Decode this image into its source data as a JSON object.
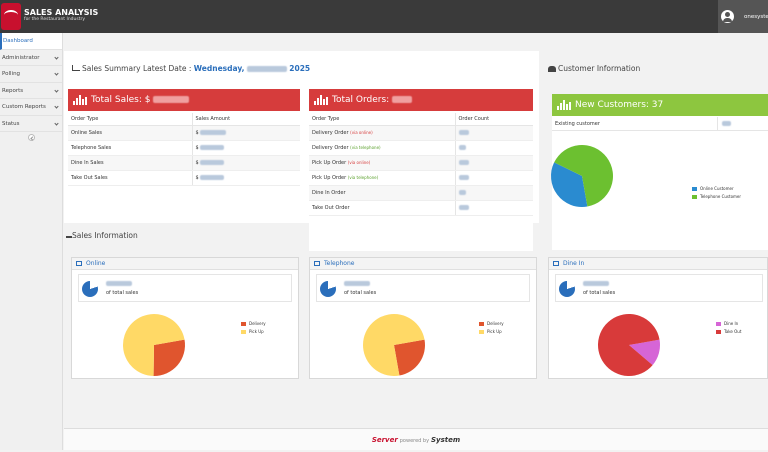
{
  "header": {
    "title": "SALES ANALYSIS",
    "subtitle": "for the Restaurant Industry",
    "username": "onesystem"
  },
  "sidebar": {
    "items": [
      {
        "label": "Dashboard",
        "active": true
      },
      {
        "label": "Administrator"
      },
      {
        "label": "Polling"
      },
      {
        "label": "Reports"
      },
      {
        "label": "Custom Reports"
      },
      {
        "label": "Status"
      }
    ]
  },
  "summary": {
    "heading": "Sales Summary Latest Date : ",
    "date_prefix": "Wednesday,",
    "year": "2025"
  },
  "total_sales": {
    "label": "Total Sales: $",
    "col1": "Order Type",
    "col2": "Sales Amount",
    "rows": [
      "Online Sales",
      "Telephone Sales",
      "Dine In Sales",
      "Take Out Sales"
    ],
    "currency": "$"
  },
  "total_orders": {
    "label": "Total Orders:",
    "col1": "Order Type",
    "col2": "Order Count",
    "rows": [
      {
        "label": "Delivery Order",
        "tag": "(via online)",
        "tag_color": "red"
      },
      {
        "label": "Delivery Order",
        "tag": "(via telephone)",
        "tag_color": "green"
      },
      {
        "label": "Pick Up Order",
        "tag": "(via online)",
        "tag_color": "red"
      },
      {
        "label": "Pick Up Order",
        "tag": "(via telephone)",
        "tag_color": "green"
      },
      {
        "label": "Dine In Order",
        "tag": "",
        "tag_color": ""
      },
      {
        "label": "Take Out Order",
        "tag": "",
        "tag_color": ""
      }
    ]
  },
  "customer_info": {
    "heading": "Customer Information",
    "new_label": "New Customers: 37",
    "existing_label": "Existing customer",
    "legend": [
      "Online Customer",
      "Telephone Customer"
    ],
    "pie": [
      {
        "name": "Online Customer",
        "value": 35,
        "color": "#2a8bd0"
      },
      {
        "name": "Telephone Customer",
        "value": 65,
        "color": "#6cc030"
      }
    ]
  },
  "sales_info": {
    "heading": "Sales Information",
    "sub": "of total sales",
    "cards": [
      {
        "title": "Online",
        "legend": [
          "Delivery",
          "Pick Up"
        ],
        "colors": [
          "#e0552e",
          "#ffd966"
        ],
        "values": [
          28,
          72
        ]
      },
      {
        "title": "Telephone",
        "legend": [
          "Delivery",
          "Pick Up"
        ],
        "colors": [
          "#e0552e",
          "#ffd966"
        ],
        "values": [
          25,
          75
        ]
      },
      {
        "title": "Dine In",
        "legend": [
          "Dine In",
          "Take Out"
        ],
        "colors": [
          "#d665d6",
          "#d83a3a"
        ],
        "values": [
          14,
          86
        ]
      }
    ]
  },
  "footer": {
    "brand1": "Server",
    "powered": "powered by",
    "brand2": "System"
  },
  "colors": {
    "accent": "#2a6ebb",
    "red_bar": "#d63c3c",
    "green_bar": "#8dc63f"
  }
}
